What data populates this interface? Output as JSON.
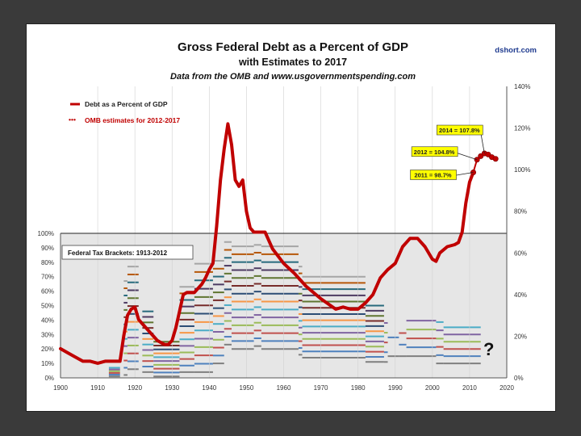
{
  "chart_data": {
    "type": "line",
    "title": "Gross Federal Debt as a Percent of GDP",
    "subtitle": "with Estimates to 2017",
    "source": "Data from the OMB and www.usgovernmentspending.com",
    "credit": "dshort.com",
    "x_axis": {
      "range": [
        1900,
        2020
      ],
      "ticks": [
        "1900",
        "1910",
        "1920",
        "1930",
        "1940",
        "1950",
        "1960",
        "1970",
        "1980",
        "1990",
        "2000",
        "2010",
        "2020"
      ]
    },
    "y_right": {
      "range": [
        0,
        140
      ],
      "ticks": [
        "0%",
        "20%",
        "40%",
        "60%",
        "80%",
        "100%",
        "120%",
        "140%"
      ]
    },
    "y_left": {
      "range": [
        0,
        100
      ],
      "ticks": [
        "0%",
        "10%",
        "20%",
        "30%",
        "40%",
        "50%",
        "60%",
        "70%",
        "80%",
        "90%",
        "100%"
      ]
    },
    "legend": {
      "debt": "Debt as a Percent of GDP",
      "estimates": "OMB estimates for 2012-2017"
    },
    "panel_label": "Federal Tax Brackets: 1913-2012",
    "question_mark": "?",
    "series": [
      {
        "name": "Debt as a Percent of GDP",
        "color": "#c00000",
        "x": [
          1900,
          1902,
          1904,
          1906,
          1908,
          1910,
          1912,
          1914,
          1916,
          1917,
          1918,
          1919,
          1920,
          1921,
          1922,
          1923,
          1924,
          1925,
          1926,
          1927,
          1928,
          1929,
          1930,
          1931,
          1932,
          1933,
          1934,
          1935,
          1936,
          1937,
          1938,
          1939,
          1940,
          1941,
          1942,
          1943,
          1944,
          1945,
          1946,
          1947,
          1948,
          1949,
          1950,
          1951,
          1952,
          1953,
          1955,
          1957,
          1960,
          1963,
          1966,
          1970,
          1974,
          1976,
          1978,
          1980,
          1982,
          1984,
          1986,
          1988,
          1990,
          1992,
          1994,
          1996,
          1998,
          2000,
          2001,
          2002,
          2004,
          2006,
          2007,
          2008,
          2009,
          2010,
          2011
        ],
        "y": [
          14,
          12,
          10,
          8,
          8,
          7,
          8,
          8,
          8,
          20,
          30,
          33,
          34,
          28,
          26,
          24,
          22,
          20,
          18,
          17,
          16,
          16,
          18,
          24,
          32,
          40,
          41,
          41,
          41,
          43,
          45,
          48,
          52,
          55,
          73,
          95,
          110,
          122,
          112,
          95,
          92,
          95,
          80,
          72,
          70,
          70,
          70,
          62,
          55,
          50,
          44,
          38,
          33,
          34,
          33,
          33,
          36,
          40,
          48,
          52,
          55,
          63,
          67,
          67,
          63,
          57,
          56,
          60,
          63,
          64,
          65,
          70,
          84,
          94,
          98.7
        ]
      },
      {
        "name": "OMB estimates for 2012-2017",
        "color": "#c00000",
        "x": [
          2011,
          2012,
          2013,
          2014,
          2015,
          2016,
          2017
        ],
        "y": [
          98.7,
          104.8,
          106.5,
          107.8,
          107.3,
          106.0,
          105.2
        ]
      }
    ],
    "callouts": [
      {
        "label": "2011 = 98.7%",
        "x": 2011,
        "y": 98.7
      },
      {
        "label": "2012 = 104.8%",
        "x": 2012,
        "y": 104.8
      },
      {
        "label": "2014 = 107.8%",
        "x": 2014,
        "y": 107.8
      }
    ],
    "tax_brackets": {
      "note": "Stacked marginal rate lines per year (percent, left axis)",
      "colors": [
        "#7f7f7f",
        "#4f81bd",
        "#c0504d",
        "#9bbb59",
        "#8064a2",
        "#4bacc6",
        "#f79646",
        "#2c4d75",
        "#772c2a",
        "#5f7530",
        "#4d3b62",
        "#276a7c",
        "#b65708",
        "#a5a5a5"
      ]
    }
  }
}
